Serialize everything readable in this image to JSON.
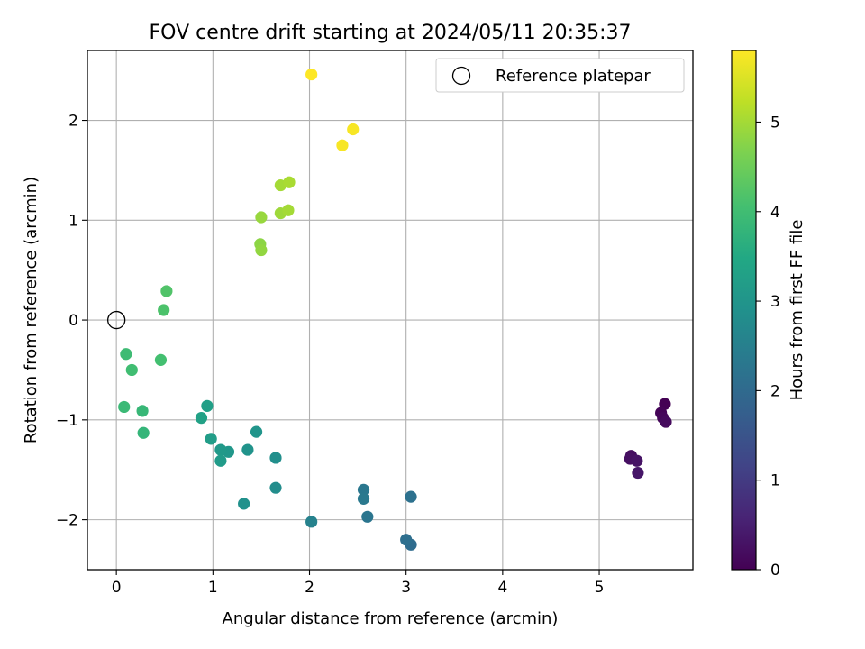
{
  "chart_data": {
    "type": "scatter",
    "title": "FOV centre drift starting at 2024/05/11 20:35:37",
    "xlabel": "Angular distance from reference (arcmin)",
    "ylabel": "Rotation from reference (arcmin)",
    "xlim": [
      -0.3,
      5.97
    ],
    "ylim": [
      -2.5,
      2.7
    ],
    "xticks": [
      0,
      1,
      2,
      3,
      4,
      5
    ],
    "yticks": [
      -2,
      -1,
      0,
      1,
      2
    ],
    "grid": true,
    "legend": {
      "position": "top-right",
      "entries": [
        "Reference platepar"
      ]
    },
    "reference_point": {
      "x": 0,
      "y": 0,
      "label": "Reference platepar",
      "marker": "open-circle"
    },
    "colorbar": {
      "label": "Hours from first FF file",
      "range": [
        0,
        5.8
      ],
      "ticks": [
        0,
        1,
        2,
        3,
        4,
        5
      ],
      "colormap": "viridis"
    },
    "points": [
      {
        "x": 5.68,
        "y": -0.84,
        "c": 0.0
      },
      {
        "x": 5.64,
        "y": -0.93,
        "c": 0.05
      },
      {
        "x": 5.66,
        "y": -0.98,
        "c": 0.1
      },
      {
        "x": 5.69,
        "y": -1.02,
        "c": 0.15
      },
      {
        "x": 5.33,
        "y": -1.36,
        "c": 0.2
      },
      {
        "x": 5.32,
        "y": -1.39,
        "c": 0.25
      },
      {
        "x": 5.39,
        "y": -1.41,
        "c": 0.3
      },
      {
        "x": 5.4,
        "y": -1.53,
        "c": 0.35
      },
      {
        "x": 3.05,
        "y": -2.25,
        "c": 2.05
      },
      {
        "x": 3.0,
        "y": -2.2,
        "c": 2.1
      },
      {
        "x": 3.05,
        "y": -1.77,
        "c": 2.15
      },
      {
        "x": 2.6,
        "y": -1.97,
        "c": 2.25
      },
      {
        "x": 2.56,
        "y": -1.7,
        "c": 2.3
      },
      {
        "x": 2.56,
        "y": -1.79,
        "c": 2.35
      },
      {
        "x": 2.02,
        "y": -2.02,
        "c": 2.55
      },
      {
        "x": 1.65,
        "y": -1.68,
        "c": 2.8
      },
      {
        "x": 1.65,
        "y": -1.38,
        "c": 2.85
      },
      {
        "x": 1.32,
        "y": -1.84,
        "c": 2.9
      },
      {
        "x": 1.36,
        "y": -1.3,
        "c": 2.95
      },
      {
        "x": 1.45,
        "y": -1.12,
        "c": 3.0
      },
      {
        "x": 1.16,
        "y": -1.32,
        "c": 3.05
      },
      {
        "x": 1.08,
        "y": -1.3,
        "c": 3.1
      },
      {
        "x": 1.08,
        "y": -1.41,
        "c": 3.15
      },
      {
        "x": 0.98,
        "y": -1.19,
        "c": 3.2
      },
      {
        "x": 0.94,
        "y": -0.86,
        "c": 3.25
      },
      {
        "x": 0.88,
        "y": -0.98,
        "c": 3.3
      },
      {
        "x": 0.28,
        "y": -1.13,
        "c": 3.8
      },
      {
        "x": 0.27,
        "y": -0.91,
        "c": 3.85
      },
      {
        "x": 0.08,
        "y": -0.87,
        "c": 3.9
      },
      {
        "x": 0.1,
        "y": -0.34,
        "c": 3.95
      },
      {
        "x": 0.16,
        "y": -0.5,
        "c": 4.0
      },
      {
        "x": 0.46,
        "y": -0.4,
        "c": 4.05
      },
      {
        "x": 0.49,
        "y": 0.1,
        "c": 4.15
      },
      {
        "x": 0.52,
        "y": 0.29,
        "c": 4.2
      },
      {
        "x": 1.49,
        "y": 0.76,
        "c": 4.8
      },
      {
        "x": 1.5,
        "y": 0.7,
        "c": 4.85
      },
      {
        "x": 1.5,
        "y": 1.03,
        "c": 4.9
      },
      {
        "x": 1.7,
        "y": 1.07,
        "c": 4.95
      },
      {
        "x": 1.78,
        "y": 1.1,
        "c": 5.0
      },
      {
        "x": 1.7,
        "y": 1.35,
        "c": 5.0
      },
      {
        "x": 1.79,
        "y": 1.38,
        "c": 5.05
      },
      {
        "x": 2.34,
        "y": 1.75,
        "c": 5.75
      },
      {
        "x": 2.45,
        "y": 1.91,
        "c": 5.75
      },
      {
        "x": 2.02,
        "y": 2.46,
        "c": 5.8
      }
    ]
  }
}
